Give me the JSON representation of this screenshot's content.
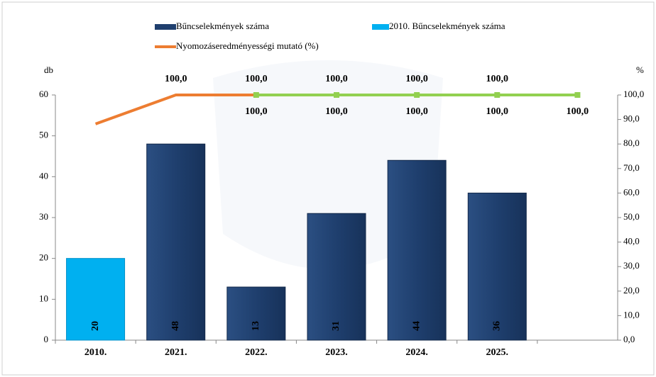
{
  "chart_data": {
    "type": "bar",
    "categories": [
      "2010.",
      "2021.",
      "2022.",
      "2023.",
      "2024.",
      "2025.",
      null
    ],
    "series": [
      {
        "name": "Bűncselekmények száma",
        "color": "#1f3f6e",
        "values": [
          null,
          48,
          13,
          31,
          44,
          36,
          null
        ]
      },
      {
        "name": "2010. Bűncselekmények száma",
        "color": "#00b0f0",
        "values": [
          20,
          null,
          null,
          null,
          null,
          null,
          null
        ]
      },
      {
        "name": "Nyomozáseredményességi mutató (%)",
        "type": "line",
        "axis": "y2",
        "color": "#ed7d31",
        "values": [
          88.2,
          100,
          100,
          100,
          100,
          100,
          null
        ],
        "value_labels": [
          null,
          "100,0",
          "100,0",
          "100,0",
          "100,0",
          "100,0",
          null
        ]
      },
      {
        "type": "line",
        "axis": "y2",
        "color": "#92d050",
        "label_color": "#2e6b12",
        "values": [
          null,
          null,
          100,
          100,
          100,
          100,
          100
        ],
        "value_labels": [
          null,
          null,
          "100,0",
          "100,0",
          "100,0",
          "100,0",
          "100,0"
        ]
      }
    ],
    "ylabel": "db",
    "y2label": "%",
    "ylim": [
      0,
      60
    ],
    "yticks": [
      0,
      10,
      20,
      30,
      40,
      50,
      60
    ],
    "y2lim": [
      0,
      100
    ],
    "y2ticks": [
      {
        "value": 0,
        "label": "0,0"
      },
      {
        "value": 10,
        "label": "10,0"
      },
      {
        "value": 20,
        "label": "20,0"
      },
      {
        "value": 30,
        "label": "30,0"
      },
      {
        "value": 40,
        "label": "40,0"
      },
      {
        "value": 50,
        "label": "50,0"
      },
      {
        "value": 60,
        "label": "60,0"
      },
      {
        "value": 70,
        "label": "70,0"
      },
      {
        "value": 80,
        "label": "80,0"
      },
      {
        "value": 90,
        "label": "90,0"
      },
      {
        "value": 100,
        "label": "100,0"
      }
    ]
  }
}
